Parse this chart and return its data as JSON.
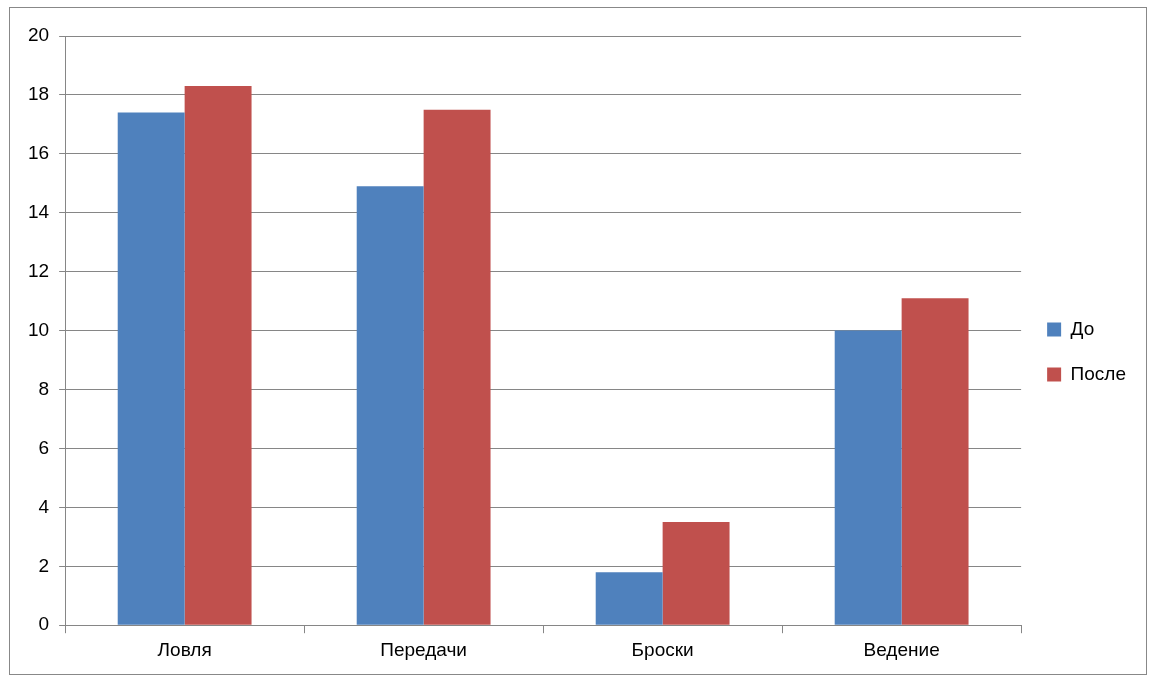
{
  "chart_data": {
    "type": "bar",
    "categories": [
      "Ловля",
      "Передачи",
      "Броски",
      "Ведение"
    ],
    "series": [
      {
        "name": "До",
        "color": "#4f81bd",
        "values": [
          17.4,
          14.9,
          1.8,
          10.0
        ]
      },
      {
        "name": "После",
        "color": "#c0504d",
        "values": [
          18.3,
          17.5,
          3.5,
          11.1
        ]
      }
    ],
    "ylim": [
      0,
      20
    ],
    "yticks": [
      0,
      2,
      4,
      6,
      8,
      10,
      12,
      14,
      16,
      18,
      20
    ],
    "grid": "y",
    "legend": "right"
  }
}
